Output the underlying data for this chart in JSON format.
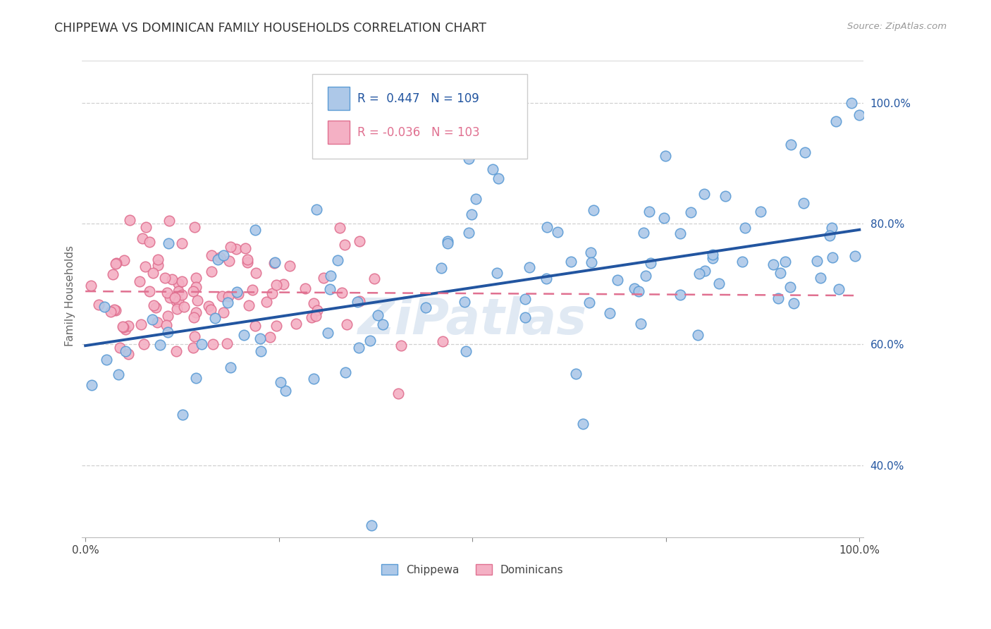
{
  "title": "CHIPPEWA VS DOMINICAN FAMILY HOUSEHOLDS CORRELATION CHART",
  "source": "Source: ZipAtlas.com",
  "ylabel": "Family Households",
  "chippewa_color": "#adc8e8",
  "chippewa_edge_color": "#5b9bd5",
  "dominicans_color": "#f4b0c4",
  "dominicans_edge_color": "#e07090",
  "trend_blue_color": "#2255a0",
  "trend_pink_color": "#e07090",
  "chippewa_label": "Chippewa",
  "dominicans_label": "Dominicans",
  "background_color": "#ffffff",
  "grid_color": "#d0d0d0",
  "right_ytick_color": "#2255a0",
  "legend_r_blue": "R =  0.447   N = 109",
  "legend_r_pink": "R = -0.036   N = 103",
  "blue_trend_x0": 0.0,
  "blue_trend_x1": 1.0,
  "blue_trend_y0": 0.598,
  "blue_trend_y1": 0.79,
  "pink_trend_x0": 0.0,
  "pink_trend_x1": 1.0,
  "pink_trend_y0": 0.688,
  "pink_trend_y1": 0.681,
  "xlim_min": -0.005,
  "xlim_max": 1.005,
  "ylim_min": 0.28,
  "ylim_max": 1.08,
  "right_yticks": [
    0.4,
    0.6,
    0.8,
    1.0
  ],
  "right_yticklabels": [
    "40.0%",
    "60.0%",
    "80.0%",
    "100.0%"
  ],
  "xtick_positions": [
    0.0,
    0.25,
    0.5,
    0.75,
    1.0
  ],
  "xtick_labels": [
    "0.0%",
    "",
    "",
    "",
    "100.0%"
  ]
}
